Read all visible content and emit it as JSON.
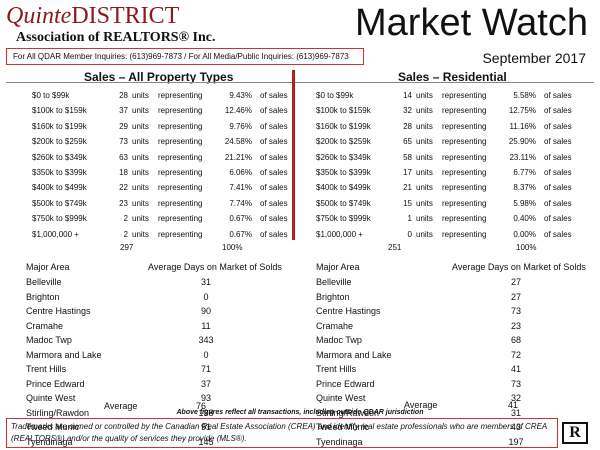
{
  "header": {
    "logo_word": "Quinte",
    "logo_district": "DISTRICT",
    "logo_assoc": "Association of REALTORS® Inc.",
    "title": "Market Watch",
    "date": "September 2017",
    "inquiry": "For All QDAR Member Inquiries: (613)969-7873 / For All Media/Public Inquiries: (613)969-7873"
  },
  "labels": {
    "units": "units",
    "representing": "representing",
    "of_sales": "of sales",
    "major_area": "Major Area",
    "average": "Average"
  },
  "sales_all": {
    "title": "Sales – All Property Types",
    "rows": [
      {
        "range": "$0 to $99k",
        "count": "28",
        "pct": "9.43%"
      },
      {
        "range": "$100k to $159k",
        "count": "37",
        "pct": "12.46%"
      },
      {
        "range": "$160k to $199k",
        "count": "29",
        "pct": "9.76%"
      },
      {
        "range": "$200k to $259k",
        "count": "73",
        "pct": "24.58%"
      },
      {
        "range": "$260k to $349k",
        "count": "63",
        "pct": "21.21%"
      },
      {
        "range": "$350k to $399k",
        "count": "18",
        "pct": "6.06%"
      },
      {
        "range": "$400k to $499k",
        "count": "22",
        "pct": "7.41%"
      },
      {
        "range": "$500k to $749k",
        "count": "23",
        "pct": "7.74%"
      },
      {
        "range": "$750k to $999k",
        "count": "2",
        "pct": "0.67%"
      },
      {
        "range": "$1,000,000 +",
        "count": "2",
        "pct": "0.67%"
      }
    ],
    "total_count": "297",
    "total_pct": "100%"
  },
  "sales_res": {
    "title": "Sales – Residential",
    "rows": [
      {
        "range": "$0 to $99k",
        "count": "14",
        "pct": "5.58%"
      },
      {
        "range": "$100k to $159k",
        "count": "32",
        "pct": "12.75%"
      },
      {
        "range": "$160k to $199k",
        "count": "28",
        "pct": "11.16%"
      },
      {
        "range": "$200k to $259k",
        "count": "65",
        "pct": "25.90%"
      },
      {
        "range": "$260k to $349k",
        "count": "58",
        "pct": "23.11%"
      },
      {
        "range": "$350k to $399k",
        "count": "17",
        "pct": "6.77%"
      },
      {
        "range": "$400k to $499k",
        "count": "21",
        "pct": "8.37%"
      },
      {
        "range": "$500k to $749k",
        "count": "15",
        "pct": "5.98%"
      },
      {
        "range": "$750k to $999k",
        "count": "1",
        "pct": "0.40%"
      },
      {
        "range": "$1,000,000 +",
        "count": "0",
        "pct": "0.00%"
      }
    ],
    "total_count": "251",
    "total_pct": "100%"
  },
  "dom_all": {
    "heading": "Average Days on Market of Solds",
    "rows": [
      {
        "area": "Belleville",
        "days": "31"
      },
      {
        "area": "Brighton",
        "days": "0"
      },
      {
        "area": "Centre Hastings",
        "days": "90"
      },
      {
        "area": "Cramahe",
        "days": "11"
      },
      {
        "area": "Madoc Twp",
        "days": "343"
      },
      {
        "area": "Marmora and Lake",
        "days": "0"
      },
      {
        "area": "Trent Hills",
        "days": "71"
      },
      {
        "area": "Prince Edward",
        "days": "37"
      },
      {
        "area": "Quinte West",
        "days": "93"
      },
      {
        "area": "Stirling/Rawdon",
        "days": "138"
      },
      {
        "area": "Tweed Munic",
        "days": "91"
      },
      {
        "area": "Tyendinaga",
        "days": "145"
      }
    ],
    "average": "76"
  },
  "dom_res": {
    "heading": "Average Days on Market  of Solds",
    "rows": [
      {
        "area": "Belleville",
        "days": "27"
      },
      {
        "area": "Brighton",
        "days": "27"
      },
      {
        "area": "Centre Hastings",
        "days": "73"
      },
      {
        "area": "Cramahe",
        "days": "23"
      },
      {
        "area": "Madoc Twp",
        "days": "68"
      },
      {
        "area": "Marmora and Lake",
        "days": "72"
      },
      {
        "area": "Trent Hills",
        "days": "41"
      },
      {
        "area": "Prince Edward",
        "days": "73"
      },
      {
        "area": "Quinte West",
        "days": "32"
      },
      {
        "area": "Stirling/Rawdon",
        "days": "31"
      },
      {
        "area": "Tweed Munic",
        "days": "43"
      },
      {
        "area": "Tyendinaga",
        "days": "197"
      }
    ],
    "average": "41"
  },
  "footer": {
    "note": "Above figures reflect all transactions, including outside QDAR jurisdiction",
    "disclaimer": "Trademarks are owned or controlled by the Canadian Real Estate Association (CREA) and identify real estate professionals who are members of CREA (REALTORS®) and/or the quality of services they provide (MLS®).",
    "logo_letter": "R"
  },
  "colors": {
    "accent": "#b21f1f",
    "logo": "#8b1a1a"
  }
}
